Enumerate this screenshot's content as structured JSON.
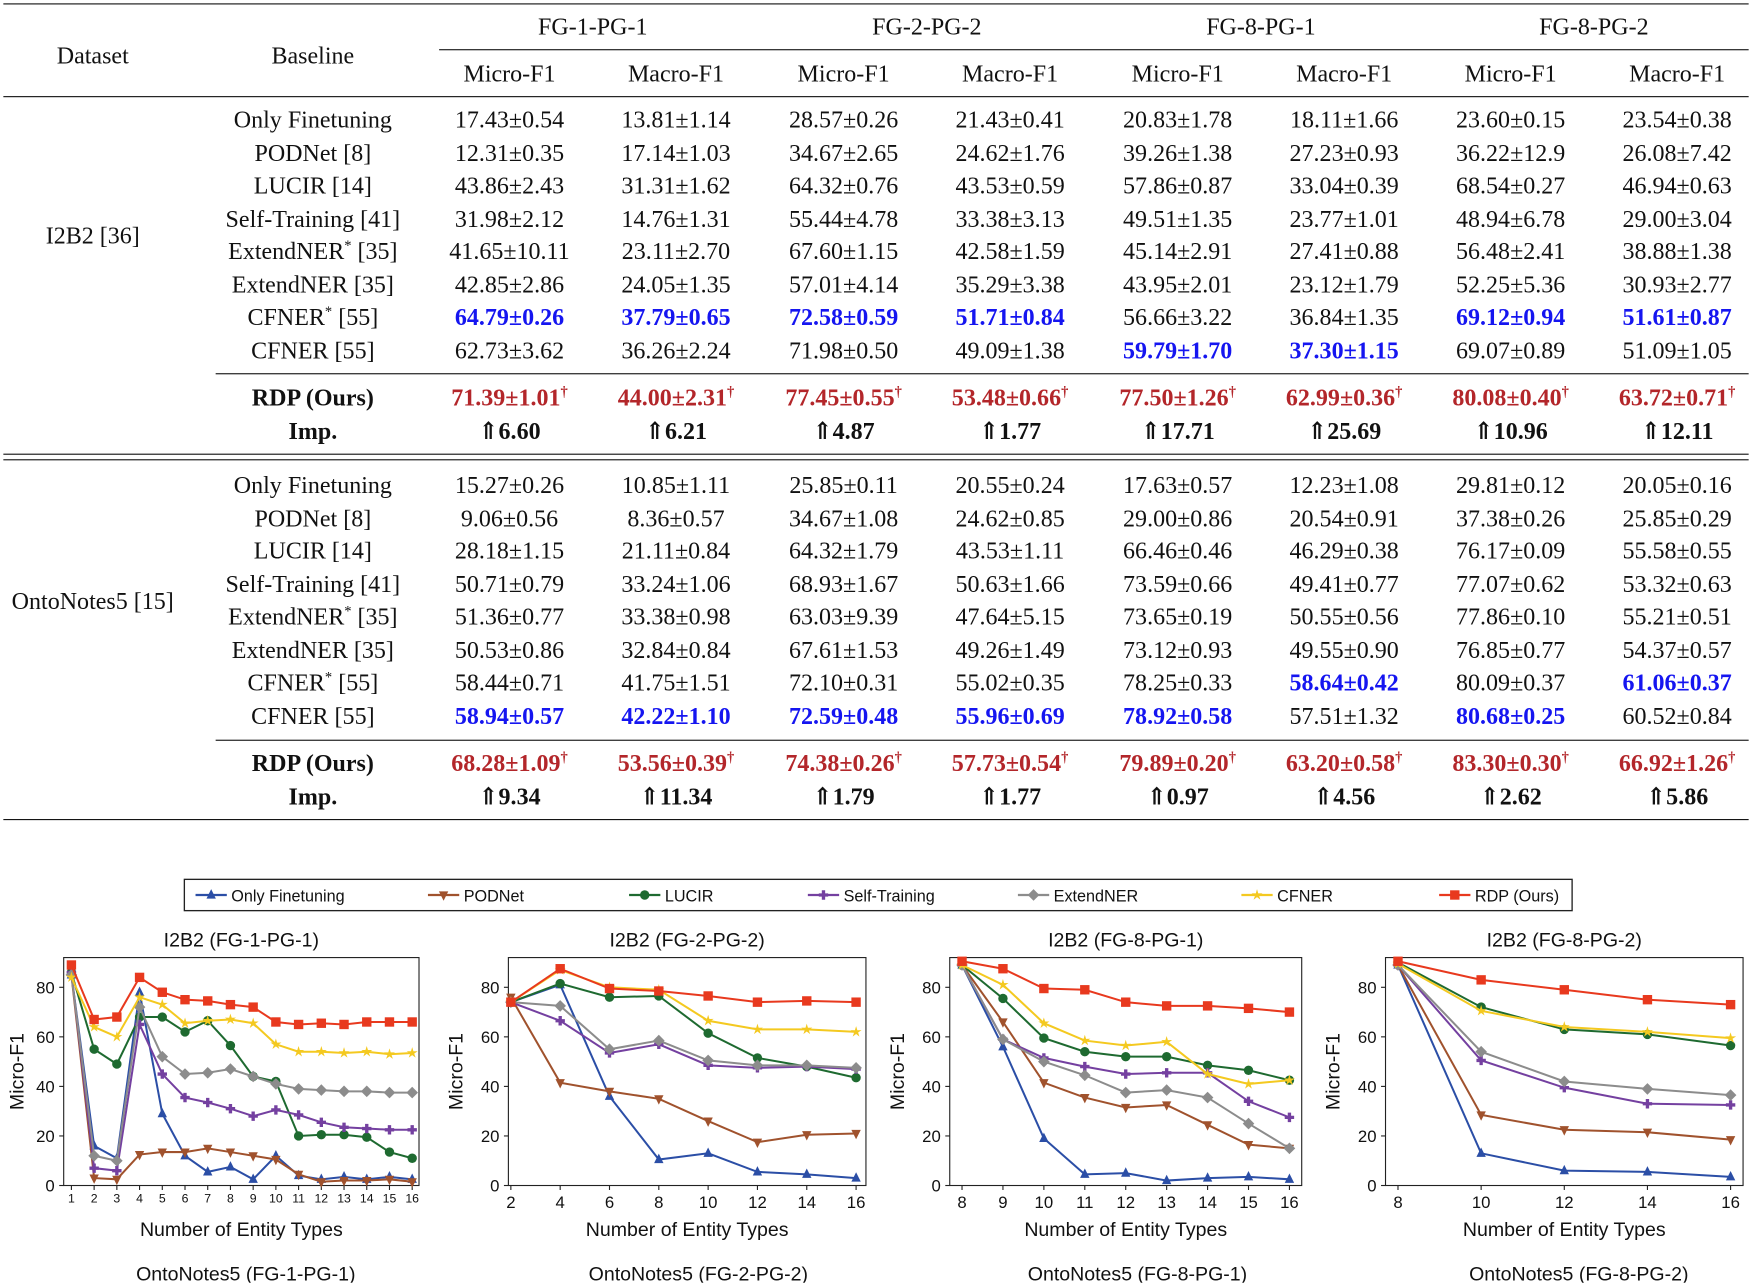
{
  "table": {
    "header": {
      "dataset": "Dataset",
      "baseline": "Baseline",
      "groups": [
        "FG-1-PG-1",
        "FG-2-PG-2",
        "FG-8-PG-1",
        "FG-8-PG-2"
      ],
      "metrics": [
        "Micro-F1",
        "Macro-F1",
        "Micro-F1",
        "Macro-F1",
        "Micro-F1",
        "Macro-F1",
        "Micro-F1",
        "Macro-F1"
      ]
    },
    "colors": {
      "best": "#1515f0",
      "ours": "#b3262a"
    },
    "blocks": [
      {
        "dataset": "I2B2 [36]",
        "rows": [
          {
            "name": "Only Finetuning",
            "sup": "",
            "ref": "",
            "values": [
              "17.43±0.54",
              "13.81±1.14",
              "28.57±0.26",
              "21.43±0.41",
              "20.83±1.78",
              "18.11±1.66",
              "23.60±0.15",
              "23.54±0.38"
            ],
            "best": []
          },
          {
            "name": "PODNet",
            "sup": "",
            "ref": "[8]",
            "values": [
              "12.31±0.35",
              "17.14±1.03",
              "34.67±2.65",
              "24.62±1.76",
              "39.26±1.38",
              "27.23±0.93",
              "36.22±12.9",
              "26.08±7.42"
            ],
            "best": []
          },
          {
            "name": "LUCIR",
            "sup": "",
            "ref": "[14]",
            "values": [
              "43.86±2.43",
              "31.31±1.62",
              "64.32±0.76",
              "43.53±0.59",
              "57.86±0.87",
              "33.04±0.39",
              "68.54±0.27",
              "46.94±0.63"
            ],
            "best": []
          },
          {
            "name": "Self-Training",
            "sup": "",
            "ref": "[41]",
            "values": [
              "31.98±2.12",
              "14.76±1.31",
              "55.44±4.78",
              "33.38±3.13",
              "49.51±1.35",
              "23.77±1.01",
              "48.94±6.78",
              "29.00±3.04"
            ],
            "best": []
          },
          {
            "name": "ExtendNER",
            "sup": "*",
            "ref": "[35]",
            "values": [
              "41.65±10.11",
              "23.11±2.70",
              "67.60±1.15",
              "42.58±1.59",
              "45.14±2.91",
              "27.41±0.88",
              "56.48±2.41",
              "38.88±1.38"
            ],
            "best": []
          },
          {
            "name": "ExtendNER",
            "sup": "",
            "ref": "[35]",
            "values": [
              "42.85±2.86",
              "24.05±1.35",
              "57.01±4.14",
              "35.29±3.38",
              "43.95±2.01",
              "23.12±1.79",
              "52.25±5.36",
              "30.93±2.77"
            ],
            "best": []
          },
          {
            "name": "CFNER",
            "sup": "*",
            "ref": "[55]",
            "values": [
              "64.79±0.26",
              "37.79±0.65",
              "72.58±0.59",
              "51.71±0.84",
              "56.66±3.22",
              "36.84±1.35",
              "69.12±0.94",
              "51.61±0.87"
            ],
            "best": [
              0,
              1,
              2,
              3,
              6,
              7
            ]
          },
          {
            "name": "CFNER",
            "sup": "",
            "ref": "[55]",
            "values": [
              "62.73±3.62",
              "36.26±2.24",
              "71.98±0.50",
              "49.09±1.38",
              "59.79±1.70",
              "37.30±1.15",
              "69.07±0.89",
              "51.09±1.05"
            ],
            "best": [
              4,
              5
            ]
          }
        ],
        "ours": {
          "name": "RDP (Ours)",
          "mark": "†",
          "values": [
            "71.39±1.01",
            "44.00±2.31",
            "77.45±0.55",
            "53.48±0.66",
            "77.50±1.26",
            "62.99±0.36",
            "80.08±0.40",
            "63.72±0.71"
          ]
        },
        "imp": {
          "name": "Imp.",
          "values": [
            "⇑6.60",
            "⇑6.21",
            "⇑4.87",
            "⇑1.77",
            "⇑17.71",
            "⇑25.69",
            "⇑10.96",
            "⇑12.11"
          ]
        }
      },
      {
        "dataset": "OntoNotes5 [15]",
        "rows": [
          {
            "name": "Only Finetuning",
            "sup": "",
            "ref": "",
            "values": [
              "15.27±0.26",
              "10.85±1.11",
              "25.85±0.11",
              "20.55±0.24",
              "17.63±0.57",
              "12.23±1.08",
              "29.81±0.12",
              "20.05±0.16"
            ],
            "best": []
          },
          {
            "name": "PODNet",
            "sup": "",
            "ref": "[8]",
            "values": [
              "9.06±0.56",
              "8.36±0.57",
              "34.67±1.08",
              "24.62±0.85",
              "29.00±0.86",
              "20.54±0.91",
              "37.38±0.26",
              "25.85±0.29"
            ],
            "best": []
          },
          {
            "name": "LUCIR",
            "sup": "",
            "ref": "[14]",
            "values": [
              "28.18±1.15",
              "21.11±0.84",
              "64.32±1.79",
              "43.53±1.11",
              "66.46±0.46",
              "46.29±0.38",
              "76.17±0.09",
              "55.58±0.55"
            ],
            "best": []
          },
          {
            "name": "Self-Training",
            "sup": "",
            "ref": "[41]",
            "values": [
              "50.71±0.79",
              "33.24±1.06",
              "68.93±1.67",
              "50.63±1.66",
              "73.59±0.66",
              "49.41±0.77",
              "77.07±0.62",
              "53.32±0.63"
            ],
            "best": []
          },
          {
            "name": "ExtendNER",
            "sup": "*",
            "ref": "[35]",
            "values": [
              "51.36±0.77",
              "33.38±0.98",
              "63.03±9.39",
              "47.64±5.15",
              "73.65±0.19",
              "50.55±0.56",
              "77.86±0.10",
              "55.21±0.51"
            ],
            "best": []
          },
          {
            "name": "ExtendNER",
            "sup": "",
            "ref": "[35]",
            "values": [
              "50.53±0.86",
              "32.84±0.84",
              "67.61±1.53",
              "49.26±1.49",
              "73.12±0.93",
              "49.55±0.90",
              "76.85±0.77",
              "54.37±0.57"
            ],
            "best": []
          },
          {
            "name": "CFNER",
            "sup": "*",
            "ref": "[55]",
            "values": [
              "58.44±0.71",
              "41.75±1.51",
              "72.10±0.31",
              "55.02±0.35",
              "78.25±0.33",
              "58.64±0.42",
              "80.09±0.37",
              "61.06±0.37"
            ],
            "best": [
              5,
              7
            ]
          },
          {
            "name": "CFNER",
            "sup": "",
            "ref": "[55]",
            "values": [
              "58.94±0.57",
              "42.22±1.10",
              "72.59±0.48",
              "55.96±0.69",
              "78.92±0.58",
              "57.51±1.32",
              "80.68±0.25",
              "60.52±0.84"
            ],
            "best": [
              0,
              1,
              2,
              3,
              4,
              6
            ]
          }
        ],
        "ours": {
          "name": "RDP (Ours)",
          "mark": "†",
          "values": [
            "68.28±1.09",
            "53.56±0.39",
            "74.38±0.26",
            "57.73±0.54",
            "79.89±0.20",
            "63.20±0.58",
            "83.30±0.30",
            "66.92±1.26"
          ]
        },
        "imp": {
          "name": "Imp.",
          "values": [
            "⇑9.34",
            "⇑11.34",
            "⇑1.79",
            "⇑1.77",
            "⇑0.97",
            "⇑4.56",
            "⇑2.62",
            "⇑5.86"
          ]
        }
      }
    ]
  },
  "legend": [
    {
      "name": "Only Finetuning",
      "color": "#2b4ea6",
      "marker": "triangle-up"
    },
    {
      "name": "PODNet",
      "color": "#a0522d",
      "marker": "triangle-down"
    },
    {
      "name": "LUCIR",
      "color": "#1e6a30",
      "marker": "circle"
    },
    {
      "name": "Self-Training",
      "color": "#7440a0",
      "marker": "plus"
    },
    {
      "name": "ExtendNER",
      "color": "#8c8c8c",
      "marker": "diamond"
    },
    {
      "name": "CFNER",
      "color": "#f4c920",
      "marker": "star"
    },
    {
      "name": "RDP (Ours)",
      "color": "#e8391e",
      "marker": "square"
    }
  ],
  "chart_data": [
    {
      "type": "line",
      "title": "I2B2 (FG-1-PG-1)",
      "xlabel": "Number of Entity Types",
      "ylabel": "Micro-F1",
      "ylim": [
        0,
        92
      ],
      "xlim": [
        0.66,
        16.3
      ],
      "x": [
        1,
        2,
        3,
        4,
        5,
        6,
        7,
        8,
        9,
        10,
        11,
        12,
        13,
        14,
        15,
        16
      ],
      "xticks": [
        1,
        2,
        3,
        4,
        5,
        6,
        7,
        8,
        9,
        10,
        11,
        12,
        13,
        14,
        15,
        16
      ],
      "yticks": [
        0,
        20,
        40,
        60,
        80
      ],
      "series": [
        {
          "name": "Only Finetuning",
          "values": [
            85,
            16,
            11,
            78,
            29,
            12,
            5.5,
            7.5,
            2.5,
            12,
            4,
            2.5,
            3.5,
            2.5,
            3.5,
            2.5
          ]
        },
        {
          "name": "PODNet",
          "values": [
            85,
            3,
            2.5,
            12.5,
            13.5,
            13.5,
            15,
            13.5,
            12,
            10.5,
            4.5,
            1.5,
            2,
            2,
            2.5,
            1.5
          ]
        },
        {
          "name": "LUCIR",
          "values": [
            86,
            55,
            49,
            68,
            68,
            62,
            66.5,
            56.5,
            44,
            42,
            20,
            20.5,
            20.5,
            19.5,
            13.5,
            11
          ]
        },
        {
          "name": "Self-Training",
          "values": [
            86,
            7,
            6,
            65,
            45,
            35.5,
            33.5,
            31,
            28,
            30.5,
            28.5,
            25.5,
            23.5,
            23,
            22.5,
            22.5
          ]
        },
        {
          "name": "ExtendNER",
          "values": [
            85,
            12,
            10,
            72,
            52,
            45,
            45.5,
            47,
            44,
            41,
            39,
            38.5,
            38,
            38,
            37.5,
            37.5
          ]
        },
        {
          "name": "CFNER",
          "values": [
            84,
            64,
            60,
            76,
            73,
            65.5,
            66.5,
            67,
            65.5,
            57,
            54,
            54,
            53.5,
            54,
            53,
            53.5
          ]
        },
        {
          "name": "RDP (Ours)",
          "values": [
            89,
            67,
            68,
            84,
            78,
            75,
            74.5,
            73,
            72,
            66,
            65,
            65.5,
            65,
            66,
            66,
            66
          ]
        }
      ]
    },
    {
      "type": "line",
      "title": "I2B2 (FG-2-PG-2)",
      "xlabel": "Number of Entity Types",
      "ylabel": "Micro-F1",
      "ylim": [
        0,
        92
      ],
      "xlim": [
        1.9,
        16.4
      ],
      "x": [
        2,
        4,
        6,
        8,
        10,
        12,
        14,
        16
      ],
      "xticks": [
        2,
        4,
        6,
        8,
        10,
        12,
        14,
        16
      ],
      "yticks": [
        0,
        20,
        40,
        60,
        80
      ],
      "series": [
        {
          "name": "Only Finetuning",
          "values": [
            74,
            81,
            36,
            10.5,
            13,
            5.5,
            4.5,
            3
          ]
        },
        {
          "name": "PODNet",
          "values": [
            76,
            41.5,
            38,
            35,
            26,
            17.5,
            20.5,
            21
          ]
        },
        {
          "name": "LUCIR",
          "values": [
            74,
            81.5,
            76,
            76.5,
            61.5,
            51.5,
            48,
            43.5
          ]
        },
        {
          "name": "Self-Training",
          "values": [
            74,
            66.5,
            53.5,
            57,
            48.5,
            47.5,
            48,
            47
          ]
        },
        {
          "name": "ExtendNER",
          "values": [
            74,
            72.5,
            55,
            58.5,
            50.5,
            48.5,
            48.5,
            47.5
          ]
        },
        {
          "name": "CFNER",
          "values": [
            74,
            87,
            80,
            79,
            66.5,
            63,
            63,
            62
          ]
        },
        {
          "name": "RDP (Ours)",
          "values": [
            74,
            87.5,
            79.5,
            78.5,
            76.5,
            74,
            74.5,
            74
          ]
        }
      ]
    },
    {
      "type": "line",
      "title": "I2B2 (FG-8-PG-1)",
      "xlabel": "Number of Entity Types",
      "ylabel": "Micro-F1",
      "ylim": [
        0,
        92
      ],
      "xlim": [
        7.7,
        16.3
      ],
      "x": [
        8,
        9,
        10,
        11,
        12,
        13,
        14,
        15,
        16
      ],
      "xticks": [
        8,
        9,
        10,
        11,
        12,
        13,
        14,
        15,
        16
      ],
      "yticks": [
        0,
        20,
        40,
        60,
        80
      ],
      "series": [
        {
          "name": "Only Finetuning",
          "values": [
            89,
            56,
            19,
            4.5,
            5,
            2,
            3,
            3.5,
            2.5
          ]
        },
        {
          "name": "PODNet",
          "values": [
            89,
            66,
            41.5,
            35.5,
            31.5,
            32.5,
            24.5,
            16.5,
            15
          ]
        },
        {
          "name": "LUCIR",
          "values": [
            89,
            75.5,
            59.5,
            54,
            52,
            52,
            48.5,
            46.5,
            42.5
          ]
        },
        {
          "name": "Self-Training",
          "values": [
            89,
            59,
            51.5,
            48,
            45,
            45.5,
            45.5,
            34,
            27.5
          ]
        },
        {
          "name": "ExtendNER",
          "values": [
            89,
            59,
            50,
            44.5,
            37.5,
            38.5,
            35.5,
            25,
            15
          ]
        },
        {
          "name": "CFNER",
          "values": [
            89,
            81,
            65.5,
            58.5,
            56.5,
            58,
            45,
            41,
            42.5
          ]
        },
        {
          "name": "RDP (Ours)",
          "values": [
            90.5,
            87.5,
            79.5,
            79,
            74,
            72.5,
            72.5,
            71.5,
            70
          ]
        }
      ]
    },
    {
      "type": "line",
      "title": "I2B2 (FG-8-PG-2)",
      "xlabel": "Number of Entity Types",
      "ylabel": "Micro-F1",
      "ylim": [
        0,
        92
      ],
      "xlim": [
        7.7,
        16.3
      ],
      "x": [
        8,
        10,
        12,
        14,
        16
      ],
      "xticks": [
        8,
        10,
        12,
        14,
        16
      ],
      "yticks": [
        0,
        20,
        40,
        60,
        80
      ],
      "series": [
        {
          "name": "Only Finetuning",
          "values": [
            89,
            13,
            6,
            5.5,
            3.5
          ]
        },
        {
          "name": "PODNet",
          "values": [
            89,
            28.5,
            22.5,
            21.5,
            18.5
          ]
        },
        {
          "name": "LUCIR",
          "values": [
            90,
            72,
            63,
            61,
            56.5
          ]
        },
        {
          "name": "Self-Training",
          "values": [
            89,
            50.5,
            39.5,
            33,
            32.5
          ]
        },
        {
          "name": "ExtendNER",
          "values": [
            89,
            54,
            42,
            39,
            36.5
          ]
        },
        {
          "name": "CFNER",
          "values": [
            89.5,
            70.5,
            64,
            62,
            59.5
          ]
        },
        {
          "name": "RDP (Ours)",
          "values": [
            90.5,
            83,
            79,
            75,
            73
          ]
        }
      ]
    }
  ],
  "next_row_titles": [
    "OntoNotes5 (FG-1-PG-1)",
    "OntoNotes5 (FG-2-PG-2)",
    "OntoNotes5 (FG-8-PG-1)",
    "OntoNotes5 (FG-8-PG-2)"
  ]
}
